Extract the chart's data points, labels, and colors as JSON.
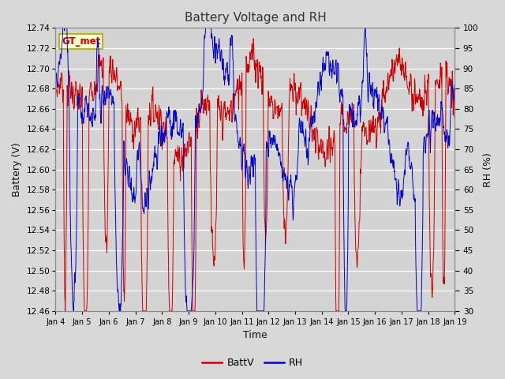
{
  "title": "Battery Voltage and RH",
  "xlabel": "Time",
  "ylabel_left": "Battery (V)",
  "ylabel_right": "RH (%)",
  "x_tick_labels": [
    "Jan 4",
    "Jan 5",
    "Jan 6",
    "Jan 7",
    "Jan 8",
    "Jan 9",
    "Jan 10",
    "Jan 11",
    "Jan 12",
    "Jan 13",
    "Jan 14",
    "Jan 15",
    "Jan 16",
    "Jan 17",
    "Jan 18",
    "Jan 19"
  ],
  "ylim_left": [
    12.46,
    12.74
  ],
  "ylim_right": [
    30,
    100
  ],
  "yticks_left": [
    12.46,
    12.48,
    12.5,
    12.52,
    12.54,
    12.56,
    12.58,
    12.6,
    12.62,
    12.64,
    12.66,
    12.68,
    12.7,
    12.72,
    12.74
  ],
  "yticks_right": [
    30,
    35,
    40,
    45,
    50,
    55,
    60,
    65,
    70,
    75,
    80,
    85,
    90,
    95,
    100
  ],
  "fig_bg_color": "#d8d8d8",
  "plot_bg_color": "#d3d3d3",
  "grid_color": "#ffffff",
  "battv_color": "#cc0000",
  "rh_color": "#0000cc",
  "legend_label_battv": "BattV",
  "legend_label_rh": "RH",
  "annotation_text": "GT_met",
  "annotation_bg": "#ffffcc",
  "annotation_border": "#aaaa00",
  "title_color": "#333333",
  "n_days": 15,
  "n_points_per_day": 96
}
